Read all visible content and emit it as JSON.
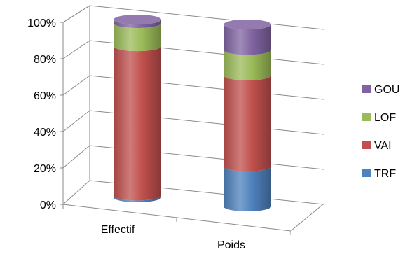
{
  "chart_data": {
    "type": "bar",
    "stacked": true,
    "percent_stacked": true,
    "style": "3d-cylinder",
    "title": "",
    "xlabel": "",
    "ylabel": "",
    "categories": [
      "Effectif",
      "Poids"
    ],
    "ylim": [
      0,
      100
    ],
    "yticks": [
      "0%",
      "20%",
      "40%",
      "60%",
      "80%",
      "100%"
    ],
    "grid": true,
    "legend_position": "right",
    "series": [
      {
        "name": "TRF",
        "values": [
          1,
          22
        ],
        "color": "#4f81bd"
      },
      {
        "name": "VAI",
        "values": [
          84,
          50
        ],
        "color": "#c0504d"
      },
      {
        "name": "LOF",
        "values": [
          13,
          14
        ],
        "color": "#9bbb59"
      },
      {
        "name": "GOU",
        "values": [
          2,
          14
        ],
        "color": "#8064a2"
      }
    ]
  }
}
